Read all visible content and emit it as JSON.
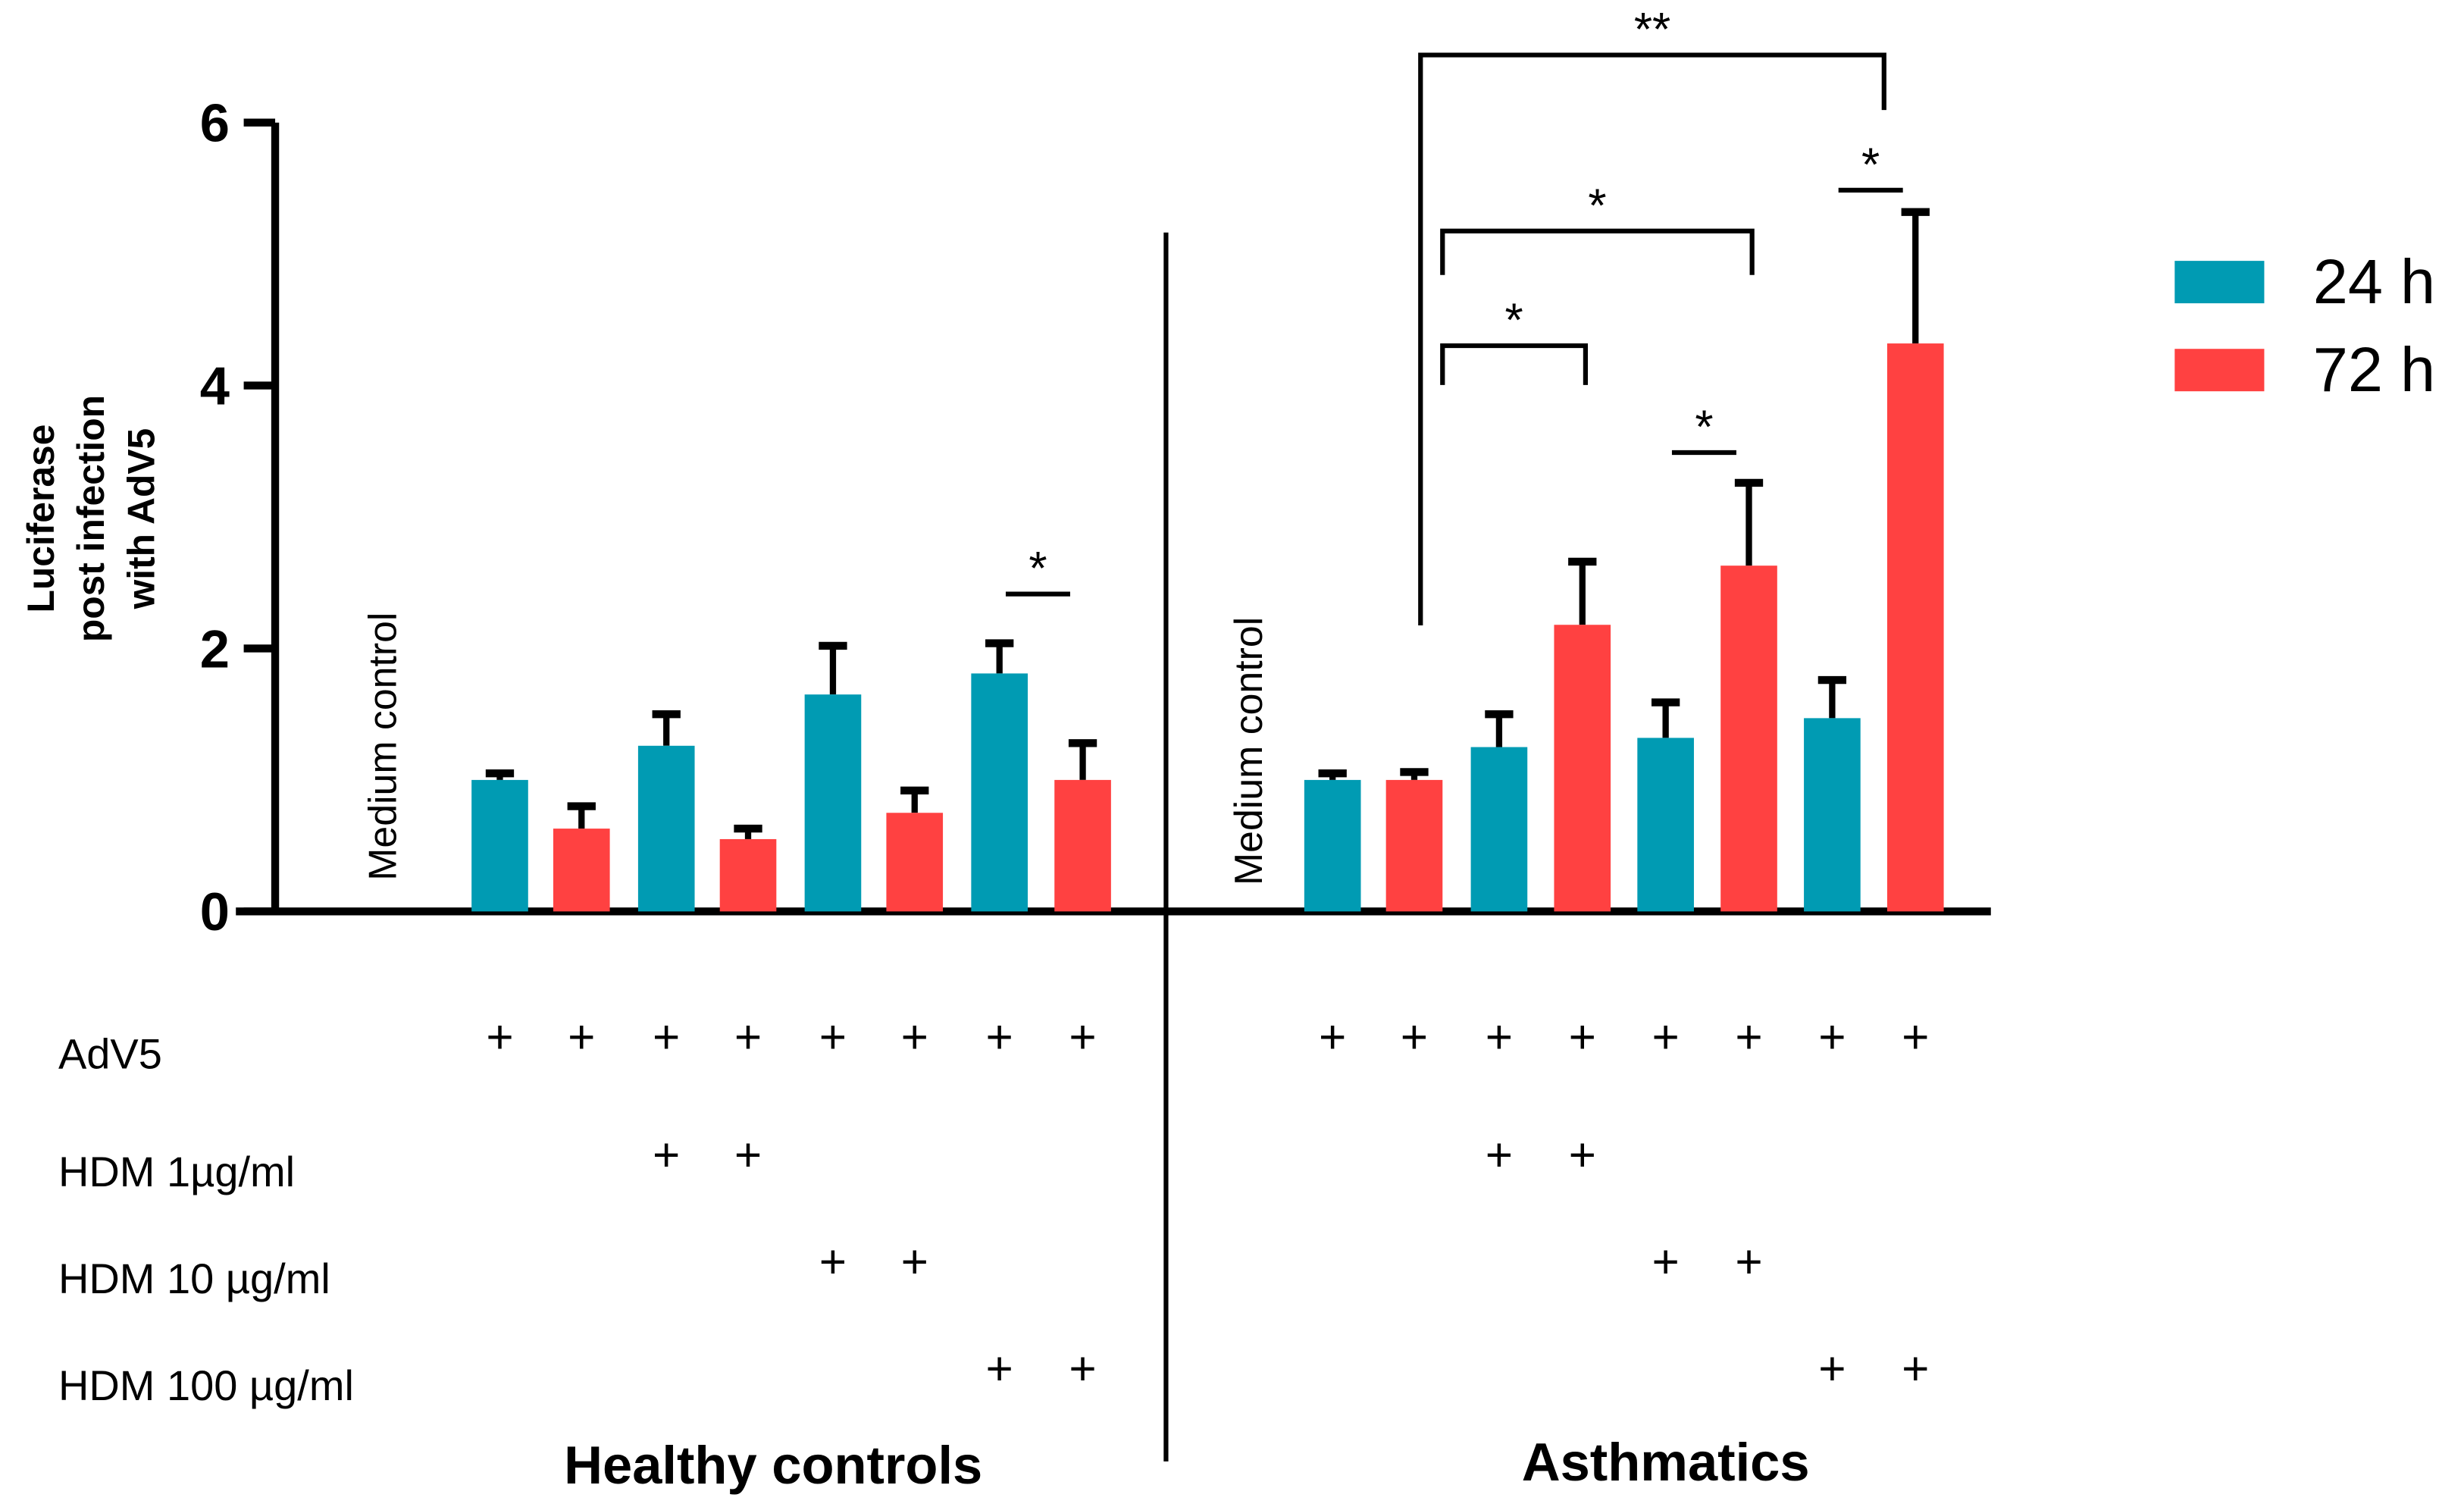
{
  "chart_data": {
    "type": "bar",
    "ylabel": [
      "Luciferase",
      "post infection",
      "with  AdV5"
    ],
    "ylim": [
      0,
      6
    ],
    "yticks": [
      "0",
      "2",
      "4",
      "6"
    ],
    "legend": {
      "placement": "right",
      "entries": [
        {
          "name": "24 h",
          "color": "#009BB3"
        },
        {
          "name": "72 h",
          "color": "#FF4141"
        }
      ]
    },
    "groups": [
      {
        "name": "Healthy controls",
        "medium_label": "Medium control",
        "bars": [
          {
            "series": "24 h",
            "value": 1.0,
            "error": 0.05
          },
          {
            "series": "72 h",
            "value": 0.63,
            "error": 0.17
          },
          {
            "series": "24 h",
            "value": 1.26,
            "error": 0.24
          },
          {
            "series": "72 h",
            "value": 0.55,
            "error": 0.08
          },
          {
            "series": "24 h",
            "value": 1.65,
            "error": 0.37
          },
          {
            "series": "72 h",
            "value": 0.75,
            "error": 0.17
          },
          {
            "series": "24 h",
            "value": 1.81,
            "error": 0.23
          },
          {
            "series": "72 h",
            "value": 1.0,
            "error": 0.28
          }
        ],
        "significance": [
          {
            "from": 6,
            "to": 7,
            "label": "*"
          }
        ]
      },
      {
        "name": "Asthmatics",
        "medium_label": "Medium control",
        "bars": [
          {
            "series": "24 h",
            "value": 1.0,
            "error": 0.05
          },
          {
            "series": "72 h",
            "value": 1.0,
            "error": 0.06
          },
          {
            "series": "24 h",
            "value": 1.25,
            "error": 0.25
          },
          {
            "series": "72 h",
            "value": 2.18,
            "error": 0.48
          },
          {
            "series": "24 h",
            "value": 1.32,
            "error": 0.27
          },
          {
            "series": "72 h",
            "value": 2.63,
            "error": 0.63
          },
          {
            "series": "24 h",
            "value": 1.47,
            "error": 0.29
          },
          {
            "series": "72 h",
            "value": 4.32,
            "error": 1.0
          }
        ],
        "significance": [
          {
            "from": 1,
            "to": 3,
            "label": "*"
          },
          {
            "from": 1,
            "to": 5,
            "label": "*"
          },
          {
            "from": 1,
            "to": 7,
            "label": "**"
          },
          {
            "from": 4,
            "to": 5,
            "label": "*"
          },
          {
            "from": 6,
            "to": 7,
            "label": "*"
          }
        ]
      }
    ],
    "treatment_rows": [
      {
        "label": "AdV5",
        "marks": [
          1,
          1,
          1,
          1,
          1,
          1,
          1,
          1
        ]
      },
      {
        "label": "HDM 1µg/ml",
        "marks": [
          0,
          0,
          1,
          1,
          0,
          0,
          0,
          0
        ]
      },
      {
        "label": "HDM 10 µg/ml",
        "marks": [
          0,
          0,
          0,
          0,
          1,
          1,
          0,
          0
        ]
      },
      {
        "label": "HDM 100 µg/ml",
        "marks": [
          0,
          0,
          0,
          0,
          0,
          0,
          1,
          1
        ]
      }
    ],
    "mark_symbol": "+"
  }
}
